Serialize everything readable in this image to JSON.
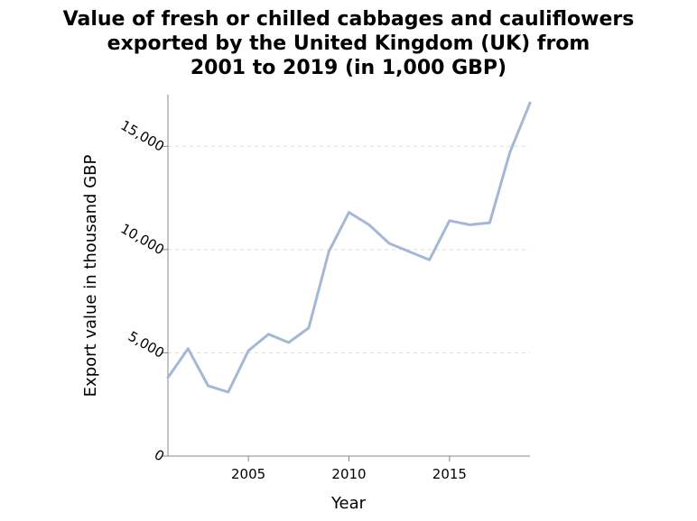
{
  "chart_data": {
    "type": "line",
    "title_lines": [
      "Value of fresh or chilled cabbages and cauliflowers",
      "exported by the United Kingdom (UK) from",
      "2001 to 2019 (in 1,000 GBP)"
    ],
    "xlabel": "Year",
    "ylabel": "Export value in thousand GBP",
    "x_ticks": [
      2005,
      2010,
      2015
    ],
    "y_ticks": [
      0,
      5000,
      10000,
      15000
    ],
    "y_tick_labels": [
      "0",
      "5,000",
      "10,000",
      "15,000"
    ],
    "xlim": [
      2001,
      2019
    ],
    "ylim": [
      0,
      17500
    ],
    "grid": "horizontal dashed",
    "line_color": "#a4b8d6",
    "series": [
      {
        "x": [
          2001,
          2002,
          2003,
          2004,
          2005,
          2006,
          2007,
          2008,
          2009,
          2010,
          2011,
          2012,
          2013,
          2014,
          2015,
          2016,
          2017,
          2018,
          2019
        ],
        "values": [
          3800,
          5200,
          3400,
          3100,
          5100,
          5900,
          5500,
          6200,
          9900,
          11800,
          11200,
          10300,
          9900,
          9500,
          11400,
          11200,
          11300,
          14700,
          17100
        ]
      }
    ]
  }
}
